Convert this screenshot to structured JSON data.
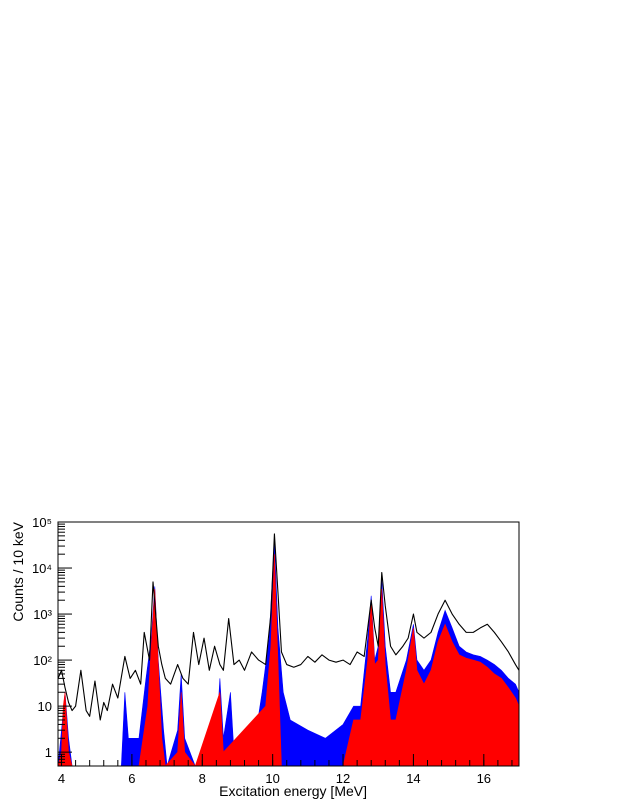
{
  "chart_data": {
    "type": "histogram",
    "xlabel": "Excitation energy [MeV]",
    "ylabel": "Counts / 10 keV",
    "xlim": [
      3.9,
      17.0
    ],
    "ylim": [
      0.5,
      100000
    ],
    "yscale": "log",
    "grid": false,
    "legend": "none",
    "x_ticks": [
      4,
      6,
      8,
      10,
      12,
      14,
      16
    ],
    "x_tick_labels": [
      "4",
      "6",
      "8",
      "10",
      "12",
      "14",
      "16"
    ],
    "y_ticks": [
      1,
      10,
      100,
      1000,
      10000,
      100000
    ],
    "y_tick_labels": [
      "1",
      "10",
      "10²",
      "10³",
      "10⁴",
      "10⁵"
    ],
    "series": [
      {
        "color": "#000000",
        "style": "line",
        "points": [
          [
            3.9,
            40
          ],
          [
            4.0,
            60
          ],
          [
            4.1,
            25
          ],
          [
            4.2,
            12
          ],
          [
            4.3,
            8
          ],
          [
            4.4,
            10
          ],
          [
            4.55,
            60
          ],
          [
            4.7,
            8
          ],
          [
            4.8,
            6
          ],
          [
            4.95,
            35
          ],
          [
            5.1,
            5
          ],
          [
            5.2,
            12
          ],
          [
            5.3,
            8
          ],
          [
            5.45,
            30
          ],
          [
            5.6,
            15
          ],
          [
            5.8,
            120
          ],
          [
            5.95,
            40
          ],
          [
            6.1,
            60
          ],
          [
            6.25,
            30
          ],
          [
            6.35,
            400
          ],
          [
            6.5,
            100
          ],
          [
            6.6,
            5000
          ],
          [
            6.75,
            200
          ],
          [
            6.85,
            80
          ],
          [
            6.95,
            40
          ],
          [
            7.1,
            30
          ],
          [
            7.3,
            80
          ],
          [
            7.45,
            40
          ],
          [
            7.6,
            30
          ],
          [
            7.75,
            400
          ],
          [
            7.9,
            80
          ],
          [
            8.05,
            300
          ],
          [
            8.2,
            60
          ],
          [
            8.35,
            200
          ],
          [
            8.5,
            80
          ],
          [
            8.6,
            60
          ],
          [
            8.75,
            800
          ],
          [
            8.9,
            80
          ],
          [
            9.05,
            100
          ],
          [
            9.2,
            60
          ],
          [
            9.4,
            150
          ],
          [
            9.6,
            100
          ],
          [
            9.8,
            80
          ],
          [
            9.95,
            1000
          ],
          [
            10.05,
            55000
          ],
          [
            10.15,
            3000
          ],
          [
            10.25,
            150
          ],
          [
            10.4,
            80
          ],
          [
            10.6,
            70
          ],
          [
            10.8,
            80
          ],
          [
            11.0,
            120
          ],
          [
            11.2,
            90
          ],
          [
            11.4,
            130
          ],
          [
            11.6,
            100
          ],
          [
            11.8,
            90
          ],
          [
            12.0,
            100
          ],
          [
            12.2,
            80
          ],
          [
            12.4,
            150
          ],
          [
            12.6,
            120
          ],
          [
            12.8,
            2000
          ],
          [
            12.9,
            500
          ],
          [
            13.0,
            200
          ],
          [
            13.1,
            8000
          ],
          [
            13.2,
            1500
          ],
          [
            13.35,
            200
          ],
          [
            13.5,
            130
          ],
          [
            13.7,
            200
          ],
          [
            13.85,
            300
          ],
          [
            14.0,
            1000
          ],
          [
            14.1,
            400
          ],
          [
            14.3,
            300
          ],
          [
            14.5,
            400
          ],
          [
            14.7,
            1000
          ],
          [
            14.9,
            2000
          ],
          [
            15.1,
            1000
          ],
          [
            15.3,
            600
          ],
          [
            15.5,
            400
          ],
          [
            15.7,
            400
          ],
          [
            15.9,
            500
          ],
          [
            16.1,
            600
          ],
          [
            16.3,
            400
          ],
          [
            16.5,
            250
          ],
          [
            16.7,
            150
          ],
          [
            16.9,
            80
          ],
          [
            17.0,
            60
          ]
        ]
      },
      {
        "color": "#0000ff",
        "style": "filled",
        "points": [
          [
            3.9,
            0.5
          ],
          [
            4.0,
            3
          ],
          [
            4.1,
            20
          ],
          [
            4.2,
            2
          ],
          [
            4.3,
            0.5
          ],
          [
            5.7,
            0.5
          ],
          [
            5.8,
            20
          ],
          [
            5.9,
            2
          ],
          [
            6.2,
            2
          ],
          [
            6.4,
            40
          ],
          [
            6.55,
            300
          ],
          [
            6.65,
            4000
          ],
          [
            6.75,
            100
          ],
          [
            6.9,
            3
          ],
          [
            7.0,
            0.5
          ],
          [
            7.3,
            3
          ],
          [
            7.4,
            50
          ],
          [
            7.5,
            2
          ],
          [
            7.8,
            0.5
          ],
          [
            8.4,
            2
          ],
          [
            8.5,
            40
          ],
          [
            8.6,
            2
          ],
          [
            8.8,
            20
          ],
          [
            8.9,
            1
          ],
          [
            9.2,
            1
          ],
          [
            9.5,
            2
          ],
          [
            9.7,
            20
          ],
          [
            9.9,
            300
          ],
          [
            10.05,
            40000
          ],
          [
            10.15,
            500
          ],
          [
            10.3,
            20
          ],
          [
            10.5,
            5
          ],
          [
            11.0,
            3
          ],
          [
            11.5,
            2
          ],
          [
            12.0,
            4
          ],
          [
            12.3,
            10
          ],
          [
            12.5,
            10
          ],
          [
            12.7,
            300
          ],
          [
            12.8,
            2500
          ],
          [
            12.9,
            100
          ],
          [
            13.0,
            200
          ],
          [
            13.1,
            6000
          ],
          [
            13.2,
            200
          ],
          [
            13.35,
            20
          ],
          [
            13.5,
            20
          ],
          [
            13.8,
            100
          ],
          [
            14.0,
            600
          ],
          [
            14.1,
            100
          ],
          [
            14.3,
            60
          ],
          [
            14.5,
            100
          ],
          [
            14.7,
            400
          ],
          [
            14.9,
            1200
          ],
          [
            15.1,
            500
          ],
          [
            15.3,
            200
          ],
          [
            15.5,
            150
          ],
          [
            15.7,
            130
          ],
          [
            15.9,
            120
          ],
          [
            16.1,
            100
          ],
          [
            16.3,
            80
          ],
          [
            16.5,
            60
          ],
          [
            16.7,
            40
          ],
          [
            16.9,
            30
          ],
          [
            17.0,
            20
          ]
        ]
      },
      {
        "color": "#ff0000",
        "style": "filled",
        "points": [
          [
            3.9,
            0.5
          ],
          [
            4.0,
            1
          ],
          [
            4.05,
            10
          ],
          [
            4.1,
            20
          ],
          [
            4.2,
            1
          ],
          [
            4.3,
            0.5
          ],
          [
            6.2,
            0.5
          ],
          [
            6.45,
            10
          ],
          [
            6.55,
            200
          ],
          [
            6.65,
            3500
          ],
          [
            6.75,
            80
          ],
          [
            6.85,
            2
          ],
          [
            6.95,
            0.5
          ],
          [
            7.3,
            1
          ],
          [
            7.4,
            20
          ],
          [
            7.5,
            1
          ],
          [
            7.8,
            0.5
          ],
          [
            8.5,
            20
          ],
          [
            8.6,
            1
          ],
          [
            9.8,
            10
          ],
          [
            9.95,
            200
          ],
          [
            10.05,
            20000
          ],
          [
            10.15,
            100
          ],
          [
            10.25,
            0.5
          ],
          [
            12.0,
            0.5
          ],
          [
            12.3,
            5
          ],
          [
            12.5,
            5
          ],
          [
            12.7,
            100
          ],
          [
            12.8,
            2000
          ],
          [
            12.9,
            80
          ],
          [
            13.0,
            100
          ],
          [
            13.1,
            3500
          ],
          [
            13.2,
            80
          ],
          [
            13.35,
            5
          ],
          [
            13.5,
            5
          ],
          [
            13.8,
            60
          ],
          [
            14.0,
            500
          ],
          [
            14.1,
            60
          ],
          [
            14.3,
            30
          ],
          [
            14.5,
            60
          ],
          [
            14.7,
            250
          ],
          [
            14.9,
            600
          ],
          [
            15.1,
            250
          ],
          [
            15.3,
            130
          ],
          [
            15.5,
            110
          ],
          [
            15.7,
            100
          ],
          [
            15.9,
            90
          ],
          [
            16.1,
            70
          ],
          [
            16.3,
            50
          ],
          [
            16.5,
            40
          ],
          [
            16.7,
            25
          ],
          [
            16.9,
            15
          ],
          [
            17.0,
            10
          ]
        ]
      }
    ]
  }
}
